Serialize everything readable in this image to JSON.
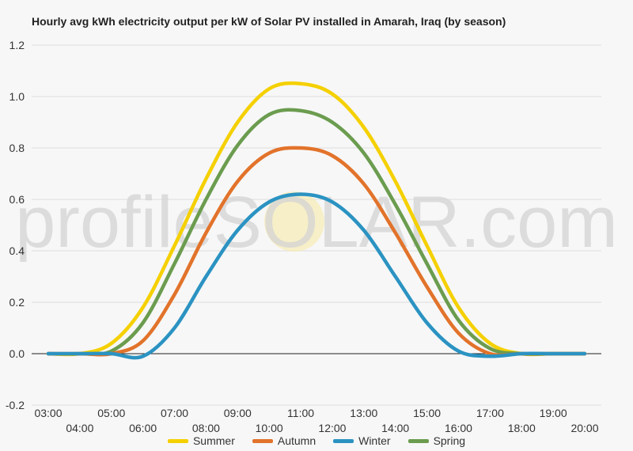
{
  "chart_data": {
    "type": "line",
    "title": "Hourly avg kWh electricity output per kW of Solar PV installed in Amarah, Iraq (by season)",
    "watermark": "profileSOLAR.com",
    "xlabel": "",
    "ylabel": "",
    "x": [
      "03:00",
      "04:00",
      "05:00",
      "06:00",
      "07:00",
      "08:00",
      "09:00",
      "10:00",
      "11:00",
      "12:00",
      "13:00",
      "14:00",
      "15:00",
      "16:00",
      "17:00",
      "18:00",
      "19:00",
      "20:00"
    ],
    "ylim": [
      -0.2,
      1.2
    ],
    "yticks": [
      "-0.2",
      "0.0",
      "0.2",
      "0.4",
      "0.6",
      "0.8",
      "1.0",
      "1.2"
    ],
    "grid": true,
    "legend_position": "bottom",
    "series": [
      {
        "name": "Summer",
        "color": "#f5d000",
        "values": [
          0,
          0,
          0.04,
          0.18,
          0.42,
          0.68,
          0.9,
          1.03,
          1.05,
          1.01,
          0.88,
          0.67,
          0.42,
          0.18,
          0.04,
          0,
          0,
          0
        ]
      },
      {
        "name": "Autumn",
        "color": "#e2732b",
        "values": [
          0,
          0,
          0,
          0.05,
          0.23,
          0.47,
          0.67,
          0.78,
          0.8,
          0.77,
          0.66,
          0.47,
          0.26,
          0.08,
          0,
          0,
          0,
          0
        ]
      },
      {
        "name": "Winter",
        "color": "#2b93c2",
        "values": [
          0,
          0,
          0,
          -0.01,
          0.1,
          0.3,
          0.48,
          0.59,
          0.62,
          0.59,
          0.48,
          0.3,
          0.12,
          0.01,
          -0.01,
          0,
          0,
          0
        ]
      },
      {
        "name": "Spring",
        "color": "#6b9c4f",
        "values": [
          0,
          0,
          0.01,
          0.12,
          0.35,
          0.6,
          0.81,
          0.93,
          0.945,
          0.9,
          0.78,
          0.58,
          0.35,
          0.13,
          0.02,
          0,
          0,
          0
        ]
      }
    ]
  }
}
